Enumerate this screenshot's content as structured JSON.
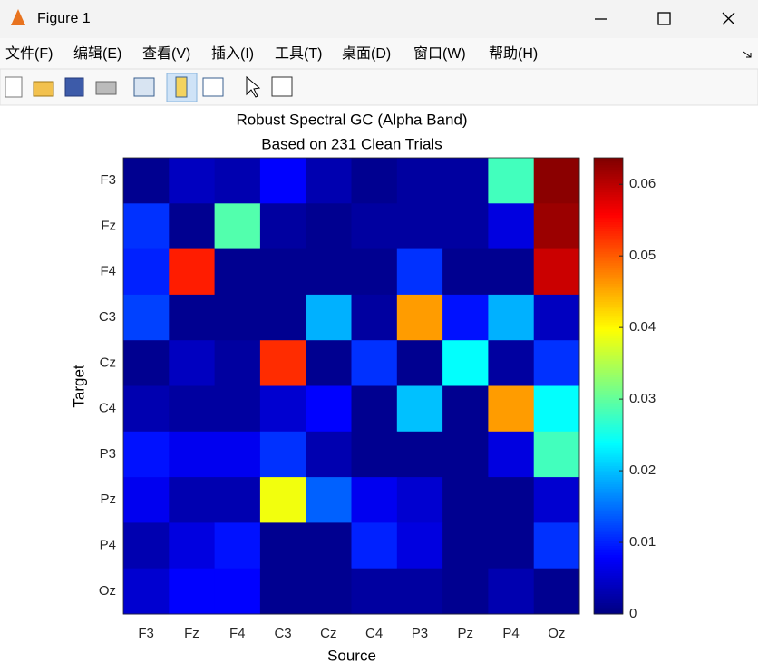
{
  "window": {
    "title": "Figure 1"
  },
  "menu": [
    "文件(F)",
    "编辑(E)",
    "查看(V)",
    "插入(I)",
    "工具(T)",
    "桌面(D)",
    "窗口(W)",
    "帮助(H)"
  ],
  "chart_data": {
    "type": "heatmap",
    "title": "Robust Spectral GC (Alpha Band)",
    "subtitle": "Based on 231 Clean Trials",
    "x_label": "Source",
    "y_label": "Target",
    "x_categories": [
      "F3",
      "Fz",
      "F4",
      "C3",
      "Cz",
      "C4",
      "P3",
      "Pz",
      "P4",
      "Oz"
    ],
    "y_categories": [
      "F3",
      "Fz",
      "F4",
      "C3",
      "Cz",
      "C4",
      "P3",
      "Pz",
      "P4",
      "Oz"
    ],
    "values": [
      [
        0.001,
        0.004,
        0.003,
        0.008,
        0.003,
        0.001,
        0.002,
        0.002,
        0.028,
        0.063
      ],
      [
        0.011,
        0.001,
        0.029,
        0.002,
        0.001,
        0.002,
        0.002,
        0.002,
        0.006,
        0.062
      ],
      [
        0.01,
        0.054,
        0.001,
        0.001,
        0.001,
        0.001,
        0.011,
        0.001,
        0.001,
        0.059
      ],
      [
        0.012,
        0.001,
        0.001,
        0.001,
        0.019,
        0.002,
        0.046,
        0.009,
        0.019,
        0.004
      ],
      [
        0.001,
        0.004,
        0.002,
        0.053,
        0.001,
        0.011,
        0.001,
        0.024,
        0.002,
        0.011
      ],
      [
        0.003,
        0.002,
        0.002,
        0.005,
        0.008,
        0.001,
        0.02,
        0.001,
        0.046,
        0.024
      ],
      [
        0.009,
        0.007,
        0.007,
        0.011,
        0.003,
        0.001,
        0.001,
        0.001,
        0.006,
        0.028
      ],
      [
        0.007,
        0.003,
        0.003,
        0.039,
        0.014,
        0.007,
        0.005,
        0.001,
        0.001,
        0.005
      ],
      [
        0.003,
        0.006,
        0.009,
        0.001,
        0.001,
        0.01,
        0.006,
        0.001,
        0.001,
        0.011
      ],
      [
        0.005,
        0.008,
        0.008,
        0.001,
        0.001,
        0.002,
        0.002,
        0.001,
        0.003,
        0.001
      ]
    ],
    "colormap": "jet",
    "clim": [
      0,
      0.0637
    ],
    "colorbar_ticks": [
      0,
      0.01,
      0.02,
      0.03,
      0.04,
      0.05,
      0.06
    ]
  }
}
